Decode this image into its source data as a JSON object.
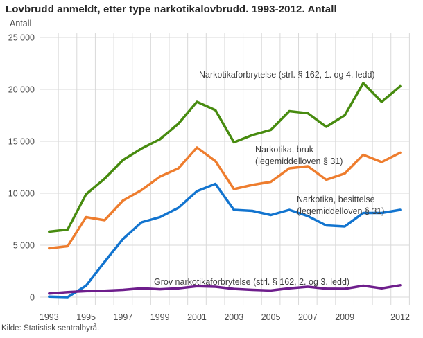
{
  "title": "Lovbrudd anmeldt, etter type narkotikalovbrudd. 1993-2012. Antall",
  "footer": {
    "source": "Kilde: Statistisk sentralbyrå."
  },
  "chart_data": {
    "type": "line",
    "title": "Lovbrudd anmeldt, etter type narkotikalovbrudd. 1993-2012. Antall",
    "xlabel": "",
    "ylabel": "Antall",
    "ylim": [
      0,
      25000
    ],
    "grid": true,
    "legend_position": "inline-annotations",
    "x": [
      1993,
      1994,
      1995,
      1996,
      1997,
      1998,
      1999,
      2000,
      2001,
      2002,
      2003,
      2004,
      2005,
      2006,
      2007,
      2008,
      2009,
      2010,
      2011,
      2012
    ],
    "xtick_labels": [
      "1993",
      "1995",
      "1997",
      "1999",
      "2001",
      "2003",
      "2005",
      "2007",
      "2009",
      "2012"
    ],
    "ytick_labels": [
      "0",
      "5 000",
      "10 000",
      "15 000",
      "20 000",
      "25 000"
    ],
    "series": [
      {
        "name": "Narkotikaforbrytelse (strl. § 162, 1. og 4. ledd)",
        "color": "#478b0f",
        "values": [
          6300,
          6500,
          9900,
          11400,
          13200,
          14300,
          15200,
          16700,
          18800,
          18000,
          14900,
          15600,
          16100,
          17900,
          17700,
          16400,
          17500,
          20600,
          18800,
          20300
        ]
      },
      {
        "name": "Narkotika, bruk (legemiddelloven § 31)",
        "color": "#ee7d2e",
        "values": [
          4700,
          4900,
          7700,
          7400,
          9300,
          10300,
          11600,
          12400,
          14400,
          13100,
          10400,
          10800,
          11100,
          12400,
          12600,
          11300,
          11900,
          13700,
          13000,
          13900
        ]
      },
      {
        "name": "Narkotika, besittelse (legemiddelloven § 31)",
        "color": "#1274cf",
        "values": [
          50,
          0,
          1100,
          3400,
          5600,
          7200,
          7700,
          8600,
          10200,
          10900,
          8400,
          8300,
          7900,
          8400,
          7800,
          6900,
          6800,
          8100,
          8100,
          8400
        ]
      },
      {
        "name": "Grov narkotikaforbrytelse (strl. § 162, 2. og 3. ledd)",
        "color": "#6e1e8c",
        "values": [
          350,
          480,
          570,
          620,
          700,
          850,
          760,
          850,
          1050,
          1000,
          790,
          700,
          640,
          850,
          1000,
          820,
          800,
          1100,
          850,
          1150
        ]
      }
    ],
    "annotations": [
      {
        "line1": "Narkotikaforbrytelse (strl. § 162, 1. og 4. ledd)",
        "line2": ""
      },
      {
        "line1": "Narkotika, bruk",
        "line2": "(legemiddelloven § 31)"
      },
      {
        "line1": "Narkotika, besittelse",
        "line2": "(legemiddelloven § 31)"
      },
      {
        "line1": "Grov narkotikaforbrytelse (strl. § 162, 2. og 3. ledd)",
        "line2": ""
      }
    ]
  }
}
